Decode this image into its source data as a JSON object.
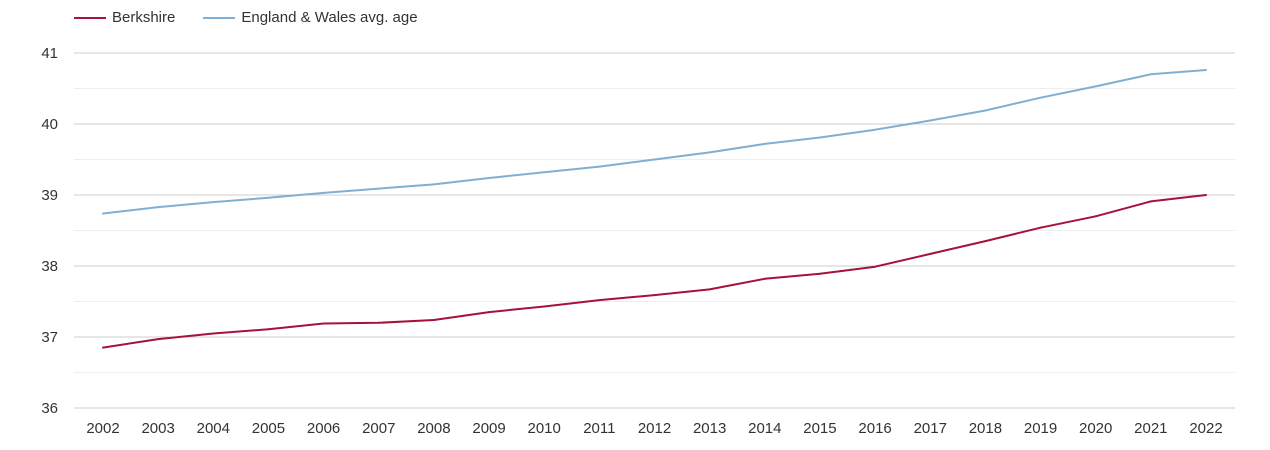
{
  "chart_data": {
    "type": "line",
    "x": [
      "2002",
      "2003",
      "2004",
      "2005",
      "2006",
      "2007",
      "2008",
      "2009",
      "2010",
      "2011",
      "2012",
      "2013",
      "2014",
      "2015",
      "2016",
      "2017",
      "2018",
      "2019",
      "2020",
      "2021",
      "2022"
    ],
    "series": [
      {
        "name": "Berkshire",
        "color": "#a5123a",
        "values": [
          36.85,
          36.97,
          37.05,
          37.11,
          37.19,
          37.2,
          37.24,
          37.35,
          37.43,
          37.52,
          37.59,
          37.67,
          37.82,
          37.89,
          37.99,
          38.17,
          38.35,
          38.54,
          38.7,
          38.91,
          39.0
        ]
      },
      {
        "name": "England & Wales avg. age",
        "color": "#7fb0d3",
        "values": [
          38.74,
          38.83,
          38.9,
          38.96,
          39.03,
          39.09,
          39.15,
          39.24,
          39.32,
          39.4,
          39.5,
          39.6,
          39.72,
          39.81,
          39.92,
          40.05,
          40.19,
          40.37,
          40.53,
          40.7,
          40.76
        ]
      }
    ],
    "yticks": [
      36,
      37,
      38,
      39,
      40,
      41
    ],
    "ylim": [
      36,
      41
    ],
    "grid": true,
    "legend": "top-left"
  }
}
